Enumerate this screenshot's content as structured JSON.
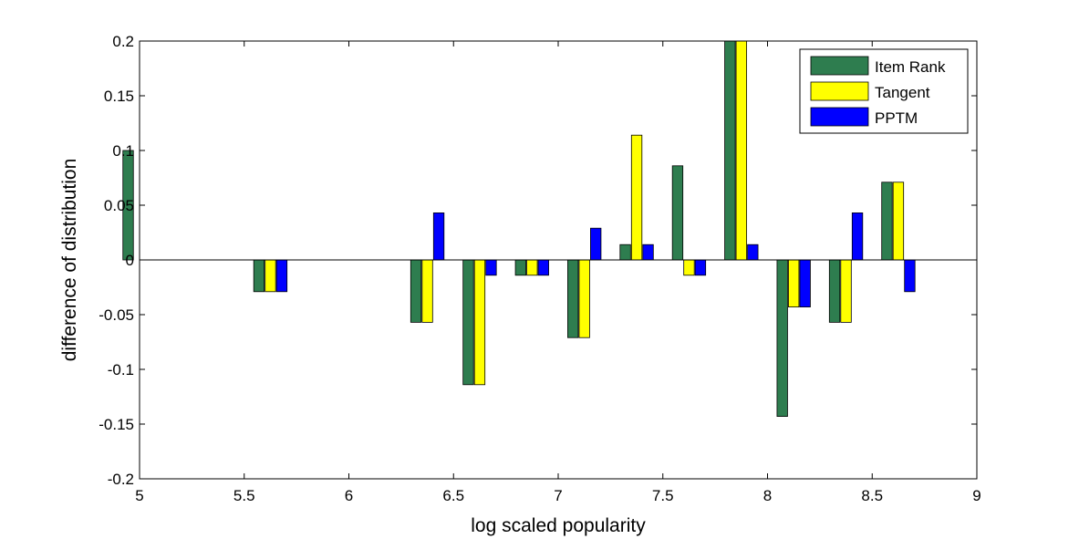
{
  "chart_data": {
    "type": "bar",
    "title": "",
    "xlabel": "log scaled popularity",
    "ylabel": "difference of distribution",
    "xlim": [
      5,
      9
    ],
    "ylim": [
      -0.2,
      0.2
    ],
    "xticks": [
      "5",
      "5.5",
      "6",
      "6.5",
      "7",
      "7.5",
      "8",
      "8.5",
      "9"
    ],
    "yticks": [
      "-0.2",
      "-0.15",
      "-0.1",
      "-0.05",
      "0",
      "0.05",
      "0.1",
      "0.15",
      "0.2"
    ],
    "grid": false,
    "legend_position": "top-right",
    "x": [
      5.0,
      5.625,
      6.375,
      6.625,
      6.875,
      7.125,
      7.375,
      7.625,
      7.875,
      8.125,
      8.375,
      8.625
    ],
    "series": [
      {
        "name": "Item Rank",
        "color": "#2e7d4f",
        "values": [
          0.1,
          -0.029,
          -0.057,
          -0.114,
          -0.014,
          -0.071,
          0.014,
          0.086,
          0.2,
          -0.143,
          -0.057,
          0.071
        ]
      },
      {
        "name": "Tangent",
        "color": "#ffff00",
        "values": [
          0,
          -0.029,
          -0.057,
          -0.114,
          -0.014,
          -0.071,
          0.114,
          -0.014,
          0.2,
          -0.043,
          -0.057,
          0.071
        ]
      },
      {
        "name": "PPTM",
        "color": "#0000ff",
        "values": [
          0,
          -0.029,
          0.043,
          -0.014,
          -0.014,
          0.029,
          0.014,
          -0.014,
          0.014,
          -0.043,
          0.043,
          -0.029
        ]
      }
    ]
  }
}
